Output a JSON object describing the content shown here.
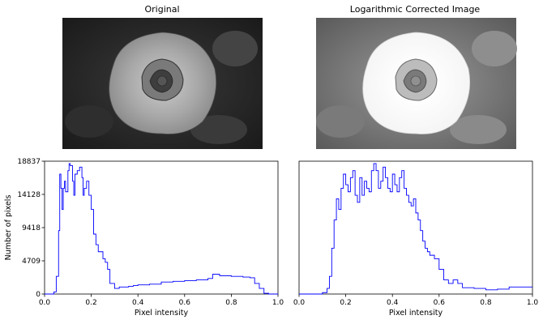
{
  "panels": {
    "original_title": "Original",
    "corrected_title": "Logarithmic Corrected Image",
    "original_image": "grayscale rose photo, moderate contrast",
    "corrected_image": "grayscale rose photo, brightened highlights after log correction"
  },
  "colors": {
    "series": "#0000ff",
    "axes": "#000000"
  },
  "chart_data": [
    {
      "type": "area",
      "title": "",
      "xlabel": "Pixel intensity",
      "ylabel": "Number of pixels",
      "xlim": [
        0,
        1
      ],
      "ylim": [
        0,
        18837
      ],
      "xticks": [
        "0.0",
        "0.2",
        "0.4",
        "0.6",
        "0.8",
        "1.0"
      ],
      "yticks": [
        "0",
        "4709",
        "9418",
        "14128",
        "18837"
      ],
      "series": [
        {
          "x": [
            0.0,
            0.03,
            0.04,
            0.05,
            0.06,
            0.065,
            0.07,
            0.075,
            0.08,
            0.085,
            0.09,
            0.1,
            0.105,
            0.11,
            0.12,
            0.125,
            0.13,
            0.14,
            0.15,
            0.16,
            0.165,
            0.17,
            0.18,
            0.19,
            0.2,
            0.21,
            0.22,
            0.23,
            0.24,
            0.25,
            0.26,
            0.27,
            0.28,
            0.3,
            0.32,
            0.34,
            0.36,
            0.38,
            0.4,
            0.45,
            0.5,
            0.55,
            0.6,
            0.65,
            0.7,
            0.72,
            0.75,
            0.8,
            0.85,
            0.88,
            0.9,
            0.92,
            0.94,
            0.96,
            1.0
          ],
          "y": [
            0,
            0,
            300,
            2500,
            9000,
            17000,
            15000,
            12000,
            15000,
            16000,
            14500,
            17500,
            18500,
            18200,
            16000,
            14000,
            17000,
            17500,
            18000,
            16500,
            14000,
            15000,
            16000,
            14000,
            12000,
            8500,
            7000,
            6000,
            6000,
            5000,
            4500,
            3500,
            1500,
            800,
            1000,
            1000,
            1100,
            1200,
            1300,
            1400,
            1700,
            1800,
            1900,
            2000,
            2200,
            2800,
            2600,
            2500,
            2400,
            2300,
            1500,
            800,
            100,
            0,
            0
          ]
        }
      ]
    },
    {
      "type": "area",
      "title": "",
      "xlabel": "Pixel intensity",
      "ylabel": "",
      "xlim": [
        0,
        1
      ],
      "ylim": [
        0,
        18837
      ],
      "xticks": [
        "0.0",
        "0.2",
        "0.4",
        "0.6",
        "0.8",
        "1.0"
      ],
      "yticks": [],
      "series": [
        {
          "x": [
            0.0,
            0.1,
            0.12,
            0.13,
            0.14,
            0.15,
            0.16,
            0.17,
            0.18,
            0.19,
            0.2,
            0.21,
            0.22,
            0.23,
            0.24,
            0.25,
            0.26,
            0.27,
            0.28,
            0.29,
            0.3,
            0.31,
            0.32,
            0.33,
            0.34,
            0.35,
            0.36,
            0.37,
            0.38,
            0.39,
            0.4,
            0.41,
            0.42,
            0.43,
            0.44,
            0.45,
            0.46,
            0.47,
            0.48,
            0.49,
            0.5,
            0.51,
            0.52,
            0.53,
            0.54,
            0.55,
            0.56,
            0.58,
            0.6,
            0.62,
            0.64,
            0.66,
            0.68,
            0.7,
            0.75,
            0.8,
            0.85,
            0.9,
            1.0
          ],
          "y": [
            0,
            200,
            800,
            2500,
            6500,
            10500,
            13500,
            12000,
            15000,
            17000,
            15500,
            14500,
            16500,
            17500,
            14000,
            13000,
            16500,
            14000,
            16000,
            15000,
            14500,
            17500,
            18500,
            17500,
            15000,
            16000,
            18000,
            16500,
            15000,
            14500,
            17000,
            15500,
            14500,
            16500,
            17500,
            15000,
            14000,
            13000,
            12500,
            13500,
            11500,
            10500,
            9000,
            7500,
            6500,
            6000,
            5500,
            5000,
            3500,
            2000,
            1500,
            2000,
            1500,
            900,
            800,
            600,
            700,
            1000,
            1000
          ]
        }
      ]
    }
  ]
}
